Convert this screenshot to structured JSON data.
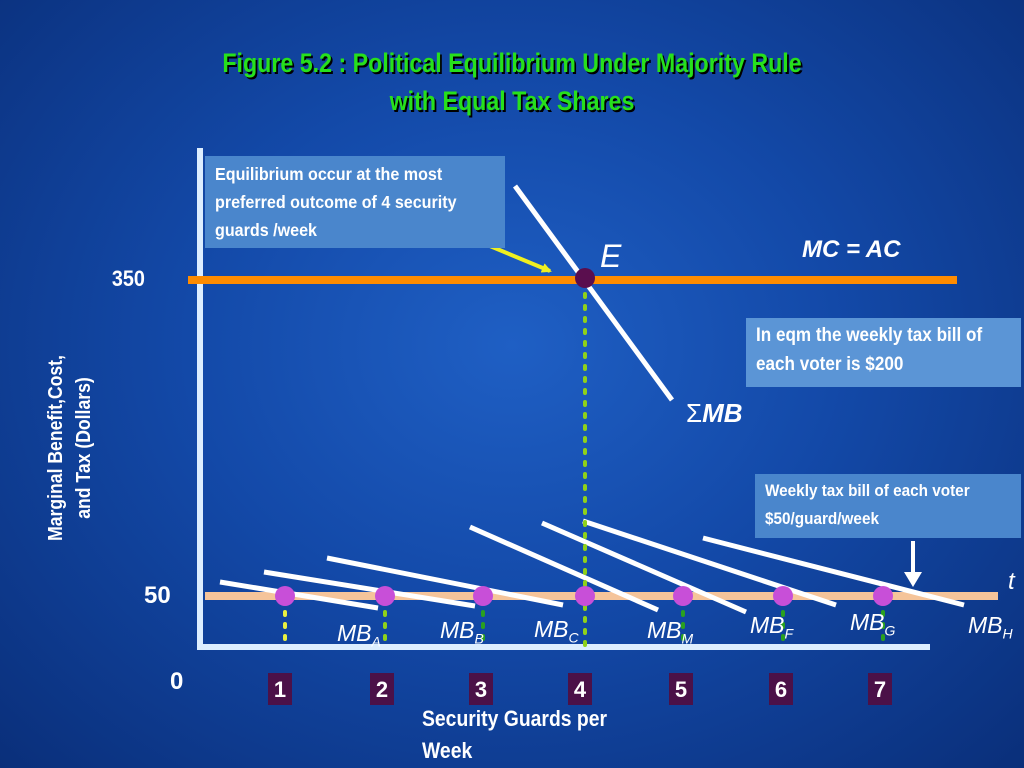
{
  "title": {
    "line1": "Figure 5.2 : Political Equilibrium Under Majority Rule",
    "line2": "with Equal Tax Shares"
  },
  "axes": {
    "y_label_line1": "Marginal Benefit,Cost,",
    "y_label_line2": "and Tax (Dollars)",
    "x_label_line1": "Security Guards per",
    "x_label_line2": "Week",
    "y_tick_350": "350",
    "y_tick_50": "50",
    "origin": "0",
    "x_ticks": [
      "1",
      "2",
      "3",
      "4",
      "5",
      "6",
      "7"
    ]
  },
  "callouts": {
    "equilibrium": "Equilibrium occur at the most preferred outcome of 4 security guards /week",
    "tax_eqm": "In eqm the weekly tax bill of each voter is $200",
    "tax_rate": "Weekly tax bill of each voter $50/guard/week"
  },
  "labels": {
    "E": "E",
    "mc_ac": "MC = AC",
    "sum_mb_symbol": "Σ",
    "sum_mb": "MB",
    "t": "t"
  },
  "mb_curves": [
    {
      "base": "MB",
      "sub": "A"
    },
    {
      "base": "MB",
      "sub": "B"
    },
    {
      "base": "MB",
      "sub": "C"
    },
    {
      "base": "MB",
      "sub": "M"
    },
    {
      "base": "MB",
      "sub": "F"
    },
    {
      "base": "MB",
      "sub": "G"
    },
    {
      "base": "MB",
      "sub": "H"
    }
  ],
  "colors": {
    "title_green": "#27e01c",
    "mc_line": "#ff8c00",
    "tax_line": "#f5c49a",
    "equilibrium_dot": "#5a0e4e",
    "intersection_dots": "#c84fd8",
    "arrow_yellow": "#f0f020",
    "dotted_green": "#8fd11a",
    "callout_bg": "#4a86cc"
  }
}
